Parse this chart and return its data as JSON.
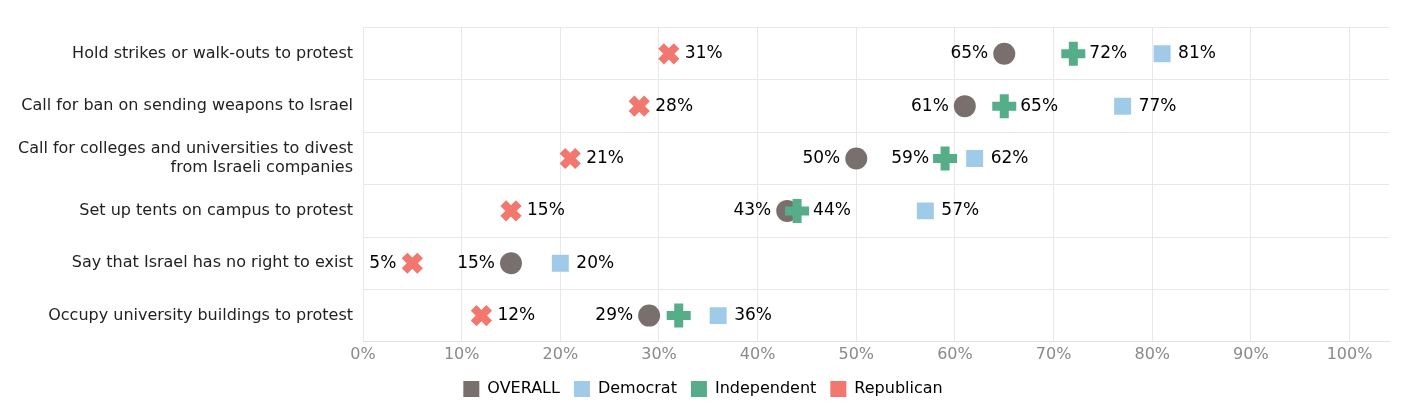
{
  "chart_data": {
    "type": "scatter",
    "orientation": "horizontal",
    "categories": [
      "Hold strikes or walk-outs to protest",
      "Call for ban on sending weapons to Israel",
      "Call for colleges and universities to divest from Israeli companies",
      "Set up tents on campus to protest",
      "Say that Israel has no right to exist",
      "Occupy university buildings to protest"
    ],
    "series": [
      {
        "name": "OVERALL",
        "color": "#79706e",
        "marker": "circle",
        "values": [
          65,
          61,
          50,
          43,
          15,
          29
        ],
        "value_labels": [
          "65%",
          "61%",
          "50%",
          "43%",
          "15%",
          "29%"
        ]
      },
      {
        "name": "Democrat",
        "color": "#a0cbe8",
        "marker": "square",
        "values": [
          81,
          77,
          62,
          57,
          20,
          36
        ],
        "value_labels": [
          "81%",
          "77%",
          "62%",
          "57%",
          "20%",
          "36%"
        ]
      },
      {
        "name": "Independent",
        "color": "#55ad89",
        "marker": "cross",
        "values": [
          72,
          65,
          59,
          44,
          null,
          32
        ],
        "value_labels": [
          "72%",
          "65%",
          "59%",
          "44%",
          null,
          null
        ]
      },
      {
        "name": "Republican",
        "color": "#f1776f",
        "marker": "x",
        "values": [
          31,
          28,
          21,
          15,
          5,
          12
        ],
        "value_labels": [
          "31%",
          "28%",
          "21%",
          "15%",
          "5%",
          "12%"
        ]
      }
    ],
    "xlim": [
      0,
      104
    ],
    "xticks": [
      {
        "value": 0,
        "label": "0%"
      },
      {
        "value": 10,
        "label": "10%"
      },
      {
        "value": 20,
        "label": "20%"
      },
      {
        "value": 30,
        "label": "30%"
      },
      {
        "value": 40,
        "label": "40%"
      },
      {
        "value": 50,
        "label": "50%"
      },
      {
        "value": 60,
        "label": "60%"
      },
      {
        "value": 70,
        "label": "70%"
      },
      {
        "value": 80,
        "label": "80%"
      },
      {
        "value": 90,
        "label": "90%"
      },
      {
        "value": 100,
        "label": "100%"
      }
    ],
    "grid": true,
    "legend": "bottom"
  }
}
